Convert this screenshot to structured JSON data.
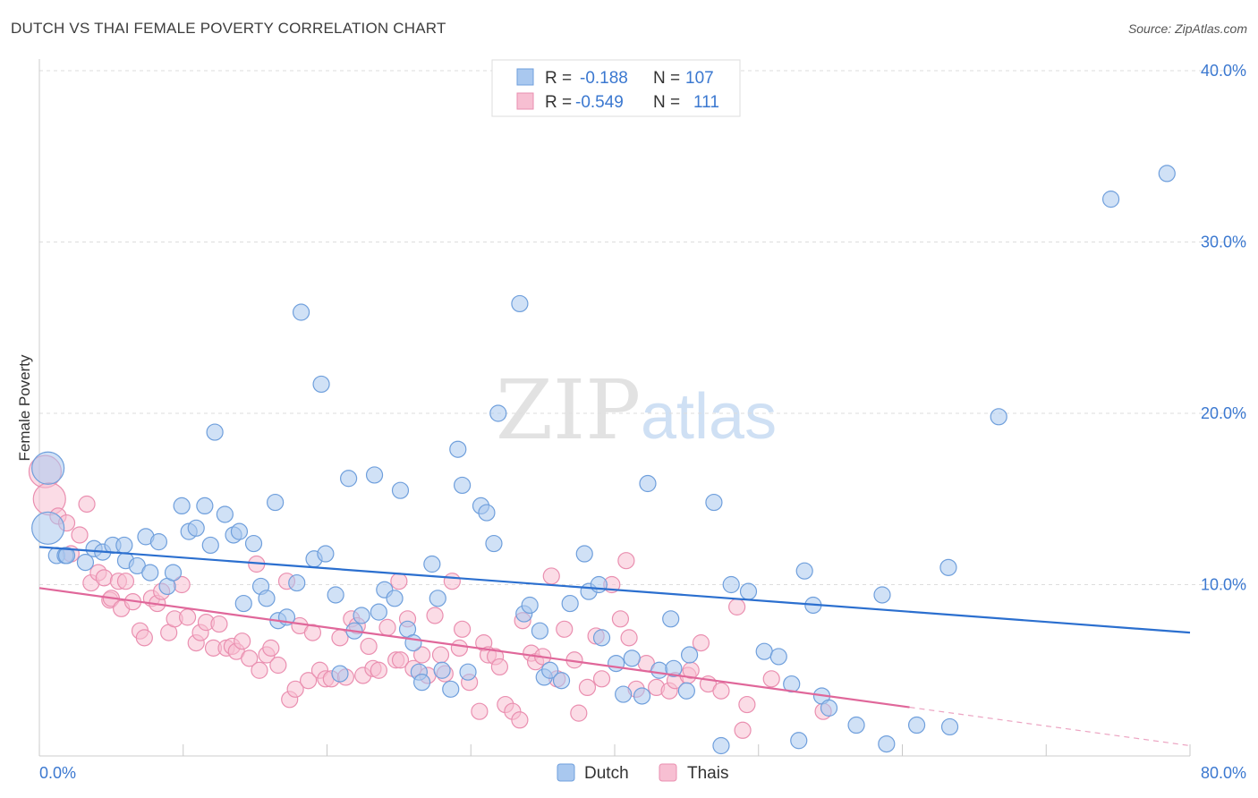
{
  "header": {
    "title": "DUTCH VS THAI FEMALE POVERTY CORRELATION CHART",
    "source": "Source: ZipAtlas.com"
  },
  "watermark": {
    "zip": "ZIP",
    "atlas": "atlas"
  },
  "legend": {
    "rows": [
      {
        "r_label": "R =",
        "r_value": "-0.188",
        "n_label": "N =",
        "n_value": "107",
        "color": "#8fb6e8"
      },
      {
        "r_label": "R =",
        "r_value": "-0.549",
        "n_label": "N =",
        "n_value": "111",
        "color": "#f2a6c0"
      }
    ]
  },
  "colors": {
    "dutch_fill": "#a9c8ef",
    "dutch_stroke": "#6f9fdc",
    "dutch_line": "#2b6fcf",
    "thai_fill": "#f7bfd2",
    "thai_stroke": "#ea8fb0",
    "thai_line": "#e0679a",
    "axis_label": "#3b78d0",
    "grid": "#dddddd"
  },
  "chart_data": {
    "type": "scatter",
    "title": "DUTCH VS THAI FEMALE POVERTY CORRELATION CHART",
    "xlabel": "",
    "ylabel": "Female Poverty",
    "xlim": [
      0,
      80
    ],
    "ylim": [
      0,
      40
    ],
    "x_tick_labels": [
      "0.0%",
      "80.0%"
    ],
    "y_ticks": [
      {
        "value": 10,
        "label": "10.0%"
      },
      {
        "value": 20,
        "label": "20.0%"
      },
      {
        "value": 30,
        "label": "30.0%"
      },
      {
        "value": 40,
        "label": "40.0%"
      }
    ],
    "grid": true,
    "legend_position": "top-center",
    "series": [
      {
        "name": "Dutch",
        "r": -0.188,
        "n": 107,
        "trend": {
          "x": [
            0,
            80
          ],
          "y": [
            12.2,
            7.2
          ]
        },
        "points": [
          [
            0.6,
            16.8
          ],
          [
            0.6,
            13.3
          ],
          [
            1.2,
            11.7
          ],
          [
            1.8,
            11.7
          ],
          [
            1.9,
            11.7
          ],
          [
            3.2,
            11.3
          ],
          [
            3.8,
            12.1
          ],
          [
            4.4,
            11.9
          ],
          [
            5.1,
            12.3
          ],
          [
            5.9,
            12.3
          ],
          [
            6.0,
            11.4
          ],
          [
            6.8,
            11.1
          ],
          [
            7.4,
            12.8
          ],
          [
            7.7,
            10.7
          ],
          [
            8.3,
            12.5
          ],
          [
            8.9,
            9.9
          ],
          [
            9.3,
            10.7
          ],
          [
            9.9,
            14.6
          ],
          [
            10.4,
            13.1
          ],
          [
            10.9,
            13.3
          ],
          [
            11.5,
            14.6
          ],
          [
            11.9,
            12.3
          ],
          [
            12.2,
            18.9
          ],
          [
            12.9,
            14.1
          ],
          [
            13.5,
            12.9
          ],
          [
            13.9,
            13.1
          ],
          [
            14.2,
            8.9
          ],
          [
            14.9,
            12.4
          ],
          [
            15.4,
            9.9
          ],
          [
            15.8,
            9.2
          ],
          [
            16.4,
            14.8
          ],
          [
            16.6,
            7.9
          ],
          [
            17.2,
            8.1
          ],
          [
            17.9,
            10.1
          ],
          [
            18.2,
            25.9
          ],
          [
            19.1,
            11.5
          ],
          [
            19.6,
            21.7
          ],
          [
            19.9,
            11.8
          ],
          [
            20.6,
            9.4
          ],
          [
            20.9,
            4.8
          ],
          [
            21.5,
            16.2
          ],
          [
            21.9,
            7.3
          ],
          [
            22.4,
            8.2
          ],
          [
            23.3,
            16.4
          ],
          [
            23.6,
            8.4
          ],
          [
            24.0,
            9.7
          ],
          [
            24.7,
            9.2
          ],
          [
            25.1,
            15.5
          ],
          [
            25.6,
            7.4
          ],
          [
            26.0,
            6.6
          ],
          [
            26.4,
            4.9
          ],
          [
            26.6,
            4.3
          ],
          [
            27.3,
            11.2
          ],
          [
            27.7,
            9.2
          ],
          [
            28.0,
            5.0
          ],
          [
            28.6,
            3.9
          ],
          [
            29.1,
            17.9
          ],
          [
            29.4,
            15.8
          ],
          [
            29.8,
            4.9
          ],
          [
            30.7,
            14.6
          ],
          [
            31.1,
            14.2
          ],
          [
            31.6,
            12.4
          ],
          [
            31.9,
            20.0
          ],
          [
            33.4,
            26.4
          ],
          [
            33.7,
            8.3
          ],
          [
            34.1,
            8.8
          ],
          [
            34.8,
            7.3
          ],
          [
            35.1,
            4.6
          ],
          [
            35.5,
            5.0
          ],
          [
            36.3,
            4.4
          ],
          [
            36.9,
            8.9
          ],
          [
            37.9,
            11.8
          ],
          [
            38.2,
            9.6
          ],
          [
            38.9,
            10.0
          ],
          [
            39.1,
            6.9
          ],
          [
            40.1,
            5.4
          ],
          [
            40.6,
            3.6
          ],
          [
            41.2,
            5.7
          ],
          [
            41.9,
            3.5
          ],
          [
            42.3,
            15.9
          ],
          [
            43.1,
            5.0
          ],
          [
            43.9,
            8.0
          ],
          [
            44.1,
            5.1
          ],
          [
            45.0,
            3.8
          ],
          [
            45.2,
            5.9
          ],
          [
            46.9,
            14.8
          ],
          [
            47.4,
            0.6
          ],
          [
            48.1,
            10.0
          ],
          [
            49.3,
            9.6
          ],
          [
            50.4,
            6.1
          ],
          [
            51.4,
            5.8
          ],
          [
            52.3,
            4.2
          ],
          [
            52.8,
            0.9
          ],
          [
            53.2,
            10.8
          ],
          [
            53.8,
            8.8
          ],
          [
            54.4,
            3.5
          ],
          [
            54.9,
            2.8
          ],
          [
            56.8,
            1.8
          ],
          [
            58.6,
            9.4
          ],
          [
            58.9,
            0.7
          ],
          [
            61.0,
            1.8
          ],
          [
            63.2,
            11.0
          ],
          [
            63.3,
            1.7
          ],
          [
            66.7,
            19.8
          ],
          [
            74.5,
            32.5
          ],
          [
            78.4,
            34.0
          ]
        ]
      },
      {
        "name": "Thais",
        "r": -0.549,
        "n": 111,
        "trend": {
          "x": [
            0,
            80
          ],
          "y": [
            9.8,
            0.6
          ]
        },
        "dashed_from_x": 60.5,
        "points": [
          [
            0.4,
            16.6
          ],
          [
            0.7,
            15.0
          ],
          [
            1.3,
            14.0
          ],
          [
            1.9,
            13.6
          ],
          [
            2.2,
            11.8
          ],
          [
            2.8,
            12.9
          ],
          [
            3.3,
            14.7
          ],
          [
            3.6,
            10.1
          ],
          [
            4.1,
            10.7
          ],
          [
            4.5,
            10.4
          ],
          [
            4.9,
            9.1
          ],
          [
            5.0,
            9.2
          ],
          [
            5.5,
            10.2
          ],
          [
            5.7,
            8.6
          ],
          [
            6.0,
            10.2
          ],
          [
            6.5,
            9.0
          ],
          [
            7.0,
            7.3
          ],
          [
            7.3,
            6.9
          ],
          [
            7.8,
            9.2
          ],
          [
            8.2,
            8.9
          ],
          [
            8.5,
            9.6
          ],
          [
            9.0,
            7.2
          ],
          [
            9.4,
            8.0
          ],
          [
            9.9,
            10.0
          ],
          [
            10.3,
            8.1
          ],
          [
            10.9,
            6.6
          ],
          [
            11.2,
            7.2
          ],
          [
            11.6,
            7.8
          ],
          [
            12.1,
            6.3
          ],
          [
            12.5,
            7.7
          ],
          [
            13.0,
            6.3
          ],
          [
            13.4,
            6.4
          ],
          [
            13.7,
            6.1
          ],
          [
            14.1,
            6.7
          ],
          [
            14.6,
            5.7
          ],
          [
            15.1,
            11.2
          ],
          [
            15.3,
            5.0
          ],
          [
            15.8,
            5.9
          ],
          [
            16.1,
            6.3
          ],
          [
            16.6,
            5.3
          ],
          [
            17.2,
            10.2
          ],
          [
            17.4,
            3.3
          ],
          [
            17.8,
            3.9
          ],
          [
            18.1,
            7.6
          ],
          [
            18.7,
            4.4
          ],
          [
            19.0,
            7.2
          ],
          [
            19.5,
            5.0
          ],
          [
            19.9,
            4.5
          ],
          [
            20.3,
            4.5
          ],
          [
            20.9,
            6.9
          ],
          [
            21.3,
            4.6
          ],
          [
            21.7,
            8.0
          ],
          [
            22.1,
            7.6
          ],
          [
            22.5,
            4.7
          ],
          [
            22.9,
            6.4
          ],
          [
            23.2,
            5.1
          ],
          [
            23.6,
            5.0
          ],
          [
            24.2,
            7.5
          ],
          [
            24.8,
            5.6
          ],
          [
            25.0,
            10.2
          ],
          [
            25.1,
            5.6
          ],
          [
            25.6,
            8.0
          ],
          [
            26.0,
            5.1
          ],
          [
            26.6,
            5.9
          ],
          [
            27.0,
            4.7
          ],
          [
            27.5,
            8.2
          ],
          [
            27.9,
            5.9
          ],
          [
            28.2,
            4.8
          ],
          [
            28.7,
            10.2
          ],
          [
            29.2,
            6.3
          ],
          [
            29.4,
            7.4
          ],
          [
            29.9,
            4.3
          ],
          [
            30.6,
            2.6
          ],
          [
            30.9,
            6.6
          ],
          [
            31.2,
            5.9
          ],
          [
            31.7,
            5.8
          ],
          [
            32.0,
            5.2
          ],
          [
            32.4,
            3.0
          ],
          [
            32.9,
            2.6
          ],
          [
            33.4,
            2.1
          ],
          [
            33.6,
            7.9
          ],
          [
            34.2,
            6.0
          ],
          [
            34.5,
            5.5
          ],
          [
            35.0,
            5.8
          ],
          [
            35.6,
            10.5
          ],
          [
            36.0,
            4.5
          ],
          [
            36.5,
            7.4
          ],
          [
            37.2,
            5.6
          ],
          [
            37.5,
            2.5
          ],
          [
            38.1,
            4.0
          ],
          [
            38.7,
            7.0
          ],
          [
            39.1,
            4.5
          ],
          [
            39.8,
            10.0
          ],
          [
            40.4,
            8.0
          ],
          [
            40.8,
            11.4
          ],
          [
            41.0,
            6.9
          ],
          [
            41.5,
            3.9
          ],
          [
            42.2,
            5.4
          ],
          [
            42.9,
            4.0
          ],
          [
            43.8,
            3.8
          ],
          [
            44.2,
            4.4
          ],
          [
            45.1,
            4.7
          ],
          [
            45.3,
            5.0
          ],
          [
            46.0,
            6.6
          ],
          [
            46.5,
            4.2
          ],
          [
            47.4,
            3.8
          ],
          [
            48.5,
            8.7
          ],
          [
            48.9,
            1.5
          ],
          [
            49.2,
            3.0
          ],
          [
            50.9,
            4.5
          ],
          [
            54.5,
            2.6
          ]
        ]
      }
    ]
  },
  "bottom_legend": [
    {
      "label": "Dutch",
      "color": "#a9c8ef"
    },
    {
      "label": "Thais",
      "color": "#f7bfd2"
    }
  ]
}
